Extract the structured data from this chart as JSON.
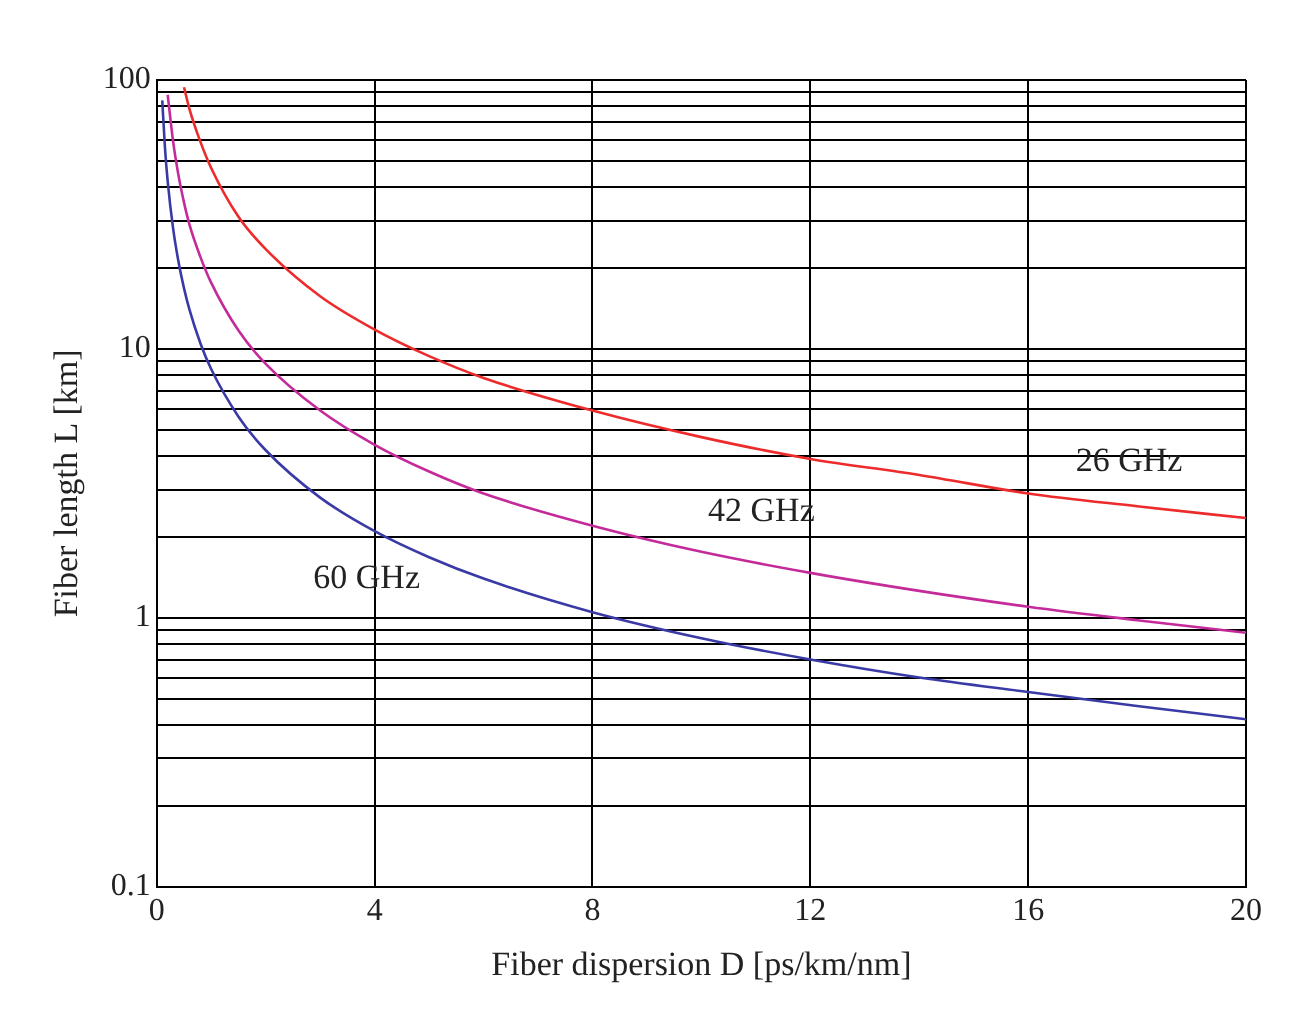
{
  "chart_data": {
    "type": "line",
    "xlabel": "Fiber dispersion D [ps/km/nm]",
    "ylabel": "Fiber length L [km]",
    "log": "y",
    "grid": true,
    "legend": false,
    "marker": "none",
    "line_style": "solid",
    "xlim": [
      0,
      20
    ],
    "xticks": [
      0,
      4,
      8,
      12,
      16,
      20
    ],
    "ylim": [
      0.1,
      100
    ],
    "yticks": [
      0.1,
      {
        "value": 0.2,
        "label": null
      },
      {
        "value": 0.3,
        "label": null
      },
      {
        "value": 0.4,
        "label": null
      },
      {
        "value": 0.5,
        "label": null
      },
      {
        "value": 0.6,
        "label": null
      },
      {
        "value": 0.7,
        "label": null
      },
      {
        "value": 0.8,
        "label": null
      },
      {
        "value": 0.9,
        "label": null
      },
      1,
      {
        "value": 2,
        "label": null
      },
      {
        "value": 3,
        "label": null
      },
      {
        "value": 4,
        "label": null
      },
      {
        "value": 5,
        "label": null
      },
      {
        "value": 6,
        "label": null
      },
      {
        "value": 7,
        "label": null
      },
      {
        "value": 8,
        "label": null
      },
      {
        "value": 9,
        "label": null
      },
      10,
      {
        "value": 20,
        "label": null
      },
      {
        "value": 30,
        "label": null
      },
      {
        "value": 40,
        "label": null
      },
      {
        "value": 50,
        "label": null
      },
      {
        "value": 60,
        "label": null
      },
      {
        "value": 70,
        "label": null
      },
      {
        "value": 80,
        "label": null
      },
      {
        "value": 90,
        "label": null
      },
      100
    ],
    "series": [
      {
        "name": "26 GHz",
        "color": "#ee2b2b",
        "x": [
          0.5,
          0.6,
          0.8,
          1,
          1.5,
          2,
          3,
          4,
          5,
          6,
          8,
          10,
          12,
          14,
          16,
          18,
          20
        ],
        "values": [
          94,
          78,
          59,
          47,
          31,
          23.5,
          15.7,
          11.8,
          9.4,
          7.8,
          5.9,
          4.7,
          3.9,
          3.4,
          2.9,
          2.6,
          2.35
        ]
      },
      {
        "name": "42 GHz",
        "color": "#c42a9a",
        "x": [
          0.2,
          0.3,
          0.4,
          0.5,
          0.6,
          0.8,
          1,
          1.5,
          2,
          3,
          4,
          5,
          6,
          8,
          10,
          12,
          14,
          16,
          18,
          20
        ],
        "values": [
          88,
          59,
          44,
          35,
          29,
          22,
          17.6,
          11.7,
          8.8,
          5.9,
          4.4,
          3.5,
          2.9,
          2.2,
          1.76,
          1.47,
          1.26,
          1.1,
          0.98,
          0.88
        ]
      },
      {
        "name": "60 GHz",
        "color": "#3a3aa6",
        "x": [
          0.1,
          0.15,
          0.2,
          0.3,
          0.4,
          0.5,
          0.6,
          0.8,
          1,
          1.5,
          2,
          3,
          4,
          5,
          6,
          8,
          10,
          12,
          14,
          16,
          18,
          20
        ],
        "values": [
          84,
          56,
          42,
          28,
          21,
          16.8,
          14,
          10.5,
          8.4,
          5.6,
          4.2,
          2.8,
          2.1,
          1.68,
          1.4,
          1.05,
          0.84,
          0.7,
          0.6,
          0.53,
          0.47,
          0.42
        ]
      }
    ]
  }
}
